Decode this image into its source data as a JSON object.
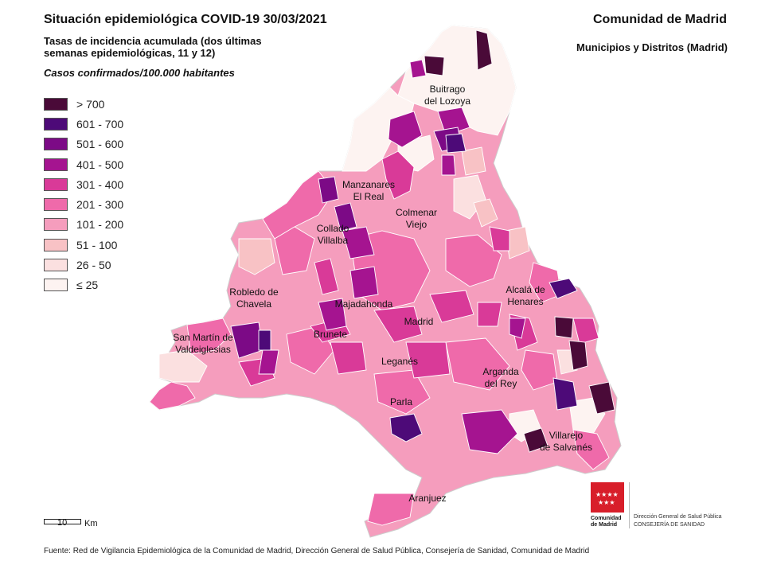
{
  "header": {
    "title": "Situación epidemiológica COVID-19  30/03/2021",
    "subtitle": "Tasas de incidencia acumulada (dos últimas semanas epidemiológicas, 11 y 12)",
    "units": "Casos confirmados/100.000 habitantes",
    "org": "Comunidad de Madrid",
    "scope": "Municipios y Distritos (Madrid)"
  },
  "legend": [
    {
      "label": "> 700",
      "color": "#4a0a38"
    },
    {
      "label": "601 - 700",
      "color": "#4d0a78"
    },
    {
      "label": "501 - 600",
      "color": "#7c0a86"
    },
    {
      "label": "401 - 500",
      "color": "#a51490"
    },
    {
      "label": "301 - 400",
      "color": "#d93a98"
    },
    {
      "label": "201 - 300",
      "color": "#ef6aaa"
    },
    {
      "label": "101 - 200",
      "color": "#f59dbd"
    },
    {
      "label": "51 - 100",
      "color": "#f8c2c5"
    },
    {
      "label": "26 - 50",
      "color": "#fbe0e0"
    },
    {
      "label": "≤ 25",
      "color": "#fdf3f1"
    }
  ],
  "places": [
    {
      "name": "Buitrago",
      "name2": "del Lozoya"
    },
    {
      "name": "Manzanares",
      "name2": "El Real"
    },
    {
      "name": "Colmenar",
      "name2": "Viejo"
    },
    {
      "name": "Collado",
      "name2": "Villalba"
    },
    {
      "name": "Robledo de",
      "name2": "Chavela"
    },
    {
      "name": "Alcalá de",
      "name2": "Henares"
    },
    {
      "name": "Majadahonda",
      "name2": ""
    },
    {
      "name": "Madrid",
      "name2": ""
    },
    {
      "name": "San Martín de",
      "name2": "Valdeiglesias"
    },
    {
      "name": "Brunete",
      "name2": ""
    },
    {
      "name": "Leganés",
      "name2": ""
    },
    {
      "name": "Arganda",
      "name2": "del Rey"
    },
    {
      "name": "Parla",
      "name2": ""
    },
    {
      "name": "Villarejo",
      "name2": "de Salvanés"
    },
    {
      "name": "Aranjuez",
      "name2": ""
    }
  ],
  "scale": {
    "value": "10",
    "unit": "Km"
  },
  "footer": "Fuente: Red de Vigilancia Epidemiológica de la Comunidad de Madrid, Dirección General de Salud Pública, Consejería de Sanidad, Comunidad de Madrid",
  "logo": {
    "name_line1": "Comunidad",
    "name_line2": "de Madrid",
    "dept_line1": "Dirección General de Salud Pública",
    "dept_line2": "CONSEJERÍA DE SANIDAD"
  }
}
